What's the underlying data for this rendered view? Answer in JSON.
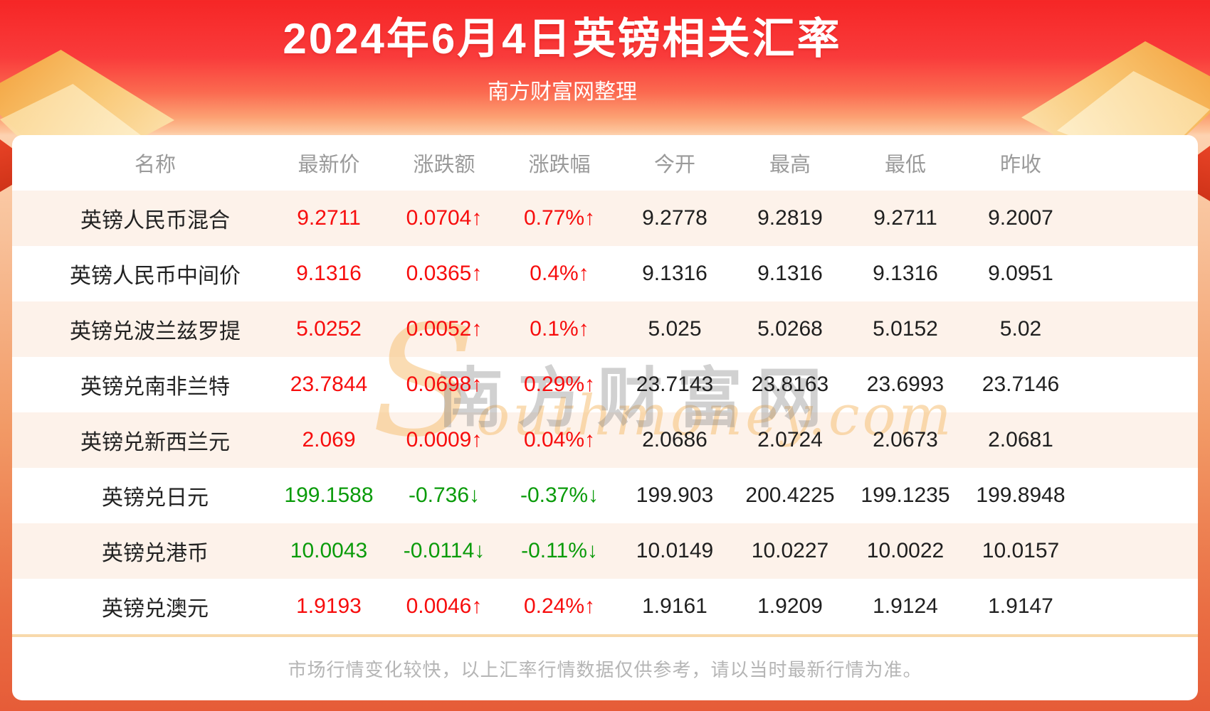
{
  "header": {
    "title": "2024年6月4日英镑相关汇率",
    "subtitle": "南方财富网整理"
  },
  "table": {
    "columns": [
      "名称",
      "最新价",
      "涨跌额",
      "涨跌幅",
      "今开",
      "最高",
      "最低",
      "昨收"
    ],
    "rows": [
      {
        "name": "英镑人民币混合",
        "latest": "9.2711",
        "change": "0.0704↑",
        "change_pct": "0.77%↑",
        "open": "9.2778",
        "high": "9.2819",
        "low": "9.2711",
        "prev_close": "9.2007",
        "trend": "up"
      },
      {
        "name": "英镑人民币中间价",
        "latest": "9.1316",
        "change": "0.0365↑",
        "change_pct": "0.4%↑",
        "open": "9.1316",
        "high": "9.1316",
        "low": "9.1316",
        "prev_close": "9.0951",
        "trend": "up"
      },
      {
        "name": "英镑兑波兰兹罗提",
        "latest": "5.0252",
        "change": "0.0052↑",
        "change_pct": "0.1%↑",
        "open": "5.025",
        "high": "5.0268",
        "low": "5.0152",
        "prev_close": "5.02",
        "trend": "up"
      },
      {
        "name": "英镑兑南非兰特",
        "latest": "23.7844",
        "change": "0.0698↑",
        "change_pct": "0.29%↑",
        "open": "23.7143",
        "high": "23.8163",
        "low": "23.6993",
        "prev_close": "23.7146",
        "trend": "up"
      },
      {
        "name": "英镑兑新西兰元",
        "latest": "2.069",
        "change": "0.0009↑",
        "change_pct": "0.04%↑",
        "open": "2.0686",
        "high": "2.0724",
        "low": "2.0673",
        "prev_close": "2.0681",
        "trend": "up"
      },
      {
        "name": "英镑兑日元",
        "latest": "199.1588",
        "change": "-0.736↓",
        "change_pct": "-0.37%↓",
        "open": "199.903",
        "high": "200.4225",
        "low": "199.1235",
        "prev_close": "199.8948",
        "trend": "down"
      },
      {
        "name": "英镑兑港币",
        "latest": "10.0043",
        "change": "-0.0114↓",
        "change_pct": "-0.11%↓",
        "open": "10.0149",
        "high": "10.0227",
        "low": "10.0022",
        "prev_close": "10.0157",
        "trend": "down"
      },
      {
        "name": "英镑兑澳元",
        "latest": "1.9193",
        "change": "0.0046↑",
        "change_pct": "0.24%↑",
        "open": "1.9161",
        "high": "1.9209",
        "low": "1.9124",
        "prev_close": "1.9147",
        "trend": "up"
      }
    ]
  },
  "watermark": {
    "script_initial": "S",
    "script_rest": "outhmoney.com",
    "cjk": "南方财富网"
  },
  "footer": {
    "note": "市场行情变化较快，以上汇率行情数据仅供参考，请以当时最新行情为准。"
  },
  "colors": {
    "up_red": "#f70d0d",
    "down_green": "#0a9b0a",
    "header_red": "#f62626",
    "stripe_pink": "#fdf2ea",
    "divider_peach": "#f8d9ab"
  }
}
